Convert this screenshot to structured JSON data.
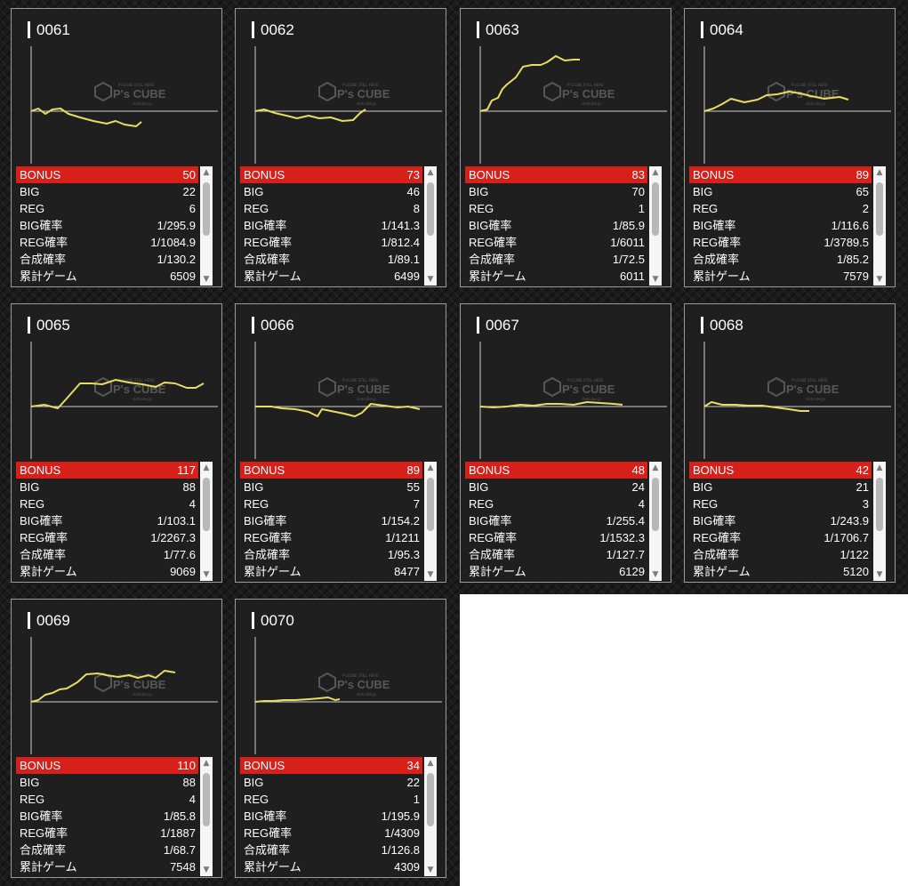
{
  "labels": {
    "bonus": "BONUS",
    "big": "BIG",
    "reg": "REG",
    "big_rate": "BIG確率",
    "reg_rate": "REG確率",
    "total_rate": "合成確率",
    "games": "累計ゲーム"
  },
  "watermark": {
    "brand": "P's CUBE",
    "top_text": "P'sCUBE STILL HERE",
    "sub_text": "slotcube.jp"
  },
  "colors": {
    "line": "#e9dc63",
    "bonus_bar": "#d8201b",
    "card_bg": "#1f1f1f",
    "card_border": "#9a9a9a"
  },
  "machines": [
    {
      "id": "0061",
      "bonus": "50",
      "big": "22",
      "reg": "6",
      "big_rate": "1/295.9",
      "reg_rate": "1/1084.9",
      "total_rate": "1/130.2",
      "games": "6509",
      "trend": [
        [
          0,
          0
        ],
        [
          8,
          -3
        ],
        [
          16,
          3
        ],
        [
          24,
          -2
        ],
        [
          33,
          -3
        ],
        [
          42,
          3
        ],
        [
          55,
          7
        ],
        [
          70,
          11
        ],
        [
          85,
          14
        ],
        [
          95,
          11
        ],
        [
          105,
          15
        ],
        [
          118,
          17
        ],
        [
          124,
          12
        ]
      ]
    },
    {
      "id": "0062",
      "bonus": "73",
      "big": "46",
      "reg": "8",
      "big_rate": "1/141.3",
      "reg_rate": "1/812.4",
      "total_rate": "1/89.1",
      "games": "6499",
      "trend": [
        [
          0,
          0
        ],
        [
          10,
          -2
        ],
        [
          22,
          2
        ],
        [
          35,
          5
        ],
        [
          47,
          8
        ],
        [
          60,
          5
        ],
        [
          72,
          8
        ],
        [
          85,
          7
        ],
        [
          98,
          11
        ],
        [
          110,
          10
        ],
        [
          118,
          2
        ],
        [
          124,
          -2
        ]
      ]
    },
    {
      "id": "0063",
      "bonus": "83",
      "big": "70",
      "reg": "1",
      "big_rate": "1/85.9",
      "reg_rate": "1/6011",
      "total_rate": "1/72.5",
      "games": "6011",
      "trend": [
        [
          0,
          0
        ],
        [
          8,
          -2
        ],
        [
          13,
          -12
        ],
        [
          20,
          -15
        ],
        [
          25,
          -25
        ],
        [
          30,
          -30
        ],
        [
          40,
          -38
        ],
        [
          48,
          -50
        ],
        [
          58,
          -52
        ],
        [
          68,
          -52
        ],
        [
          75,
          -55
        ],
        [
          85,
          -62
        ],
        [
          95,
          -57
        ],
        [
          105,
          -58
        ],
        [
          112,
          -58
        ]
      ]
    },
    {
      "id": "0064",
      "bonus": "89",
      "big": "65",
      "reg": "2",
      "big_rate": "1/116.6",
      "reg_rate": "1/3789.5",
      "total_rate": "1/85.2",
      "games": "7579",
      "trend": [
        [
          0,
          0
        ],
        [
          10,
          -3
        ],
        [
          20,
          -8
        ],
        [
          30,
          -14
        ],
        [
          45,
          -10
        ],
        [
          60,
          -13
        ],
        [
          70,
          -18
        ],
        [
          82,
          -19
        ],
        [
          95,
          -22
        ],
        [
          108,
          -20
        ],
        [
          120,
          -17
        ],
        [
          135,
          -14
        ],
        [
          152,
          -16
        ],
        [
          162,
          -13
        ]
      ]
    },
    {
      "id": "0065",
      "bonus": "117",
      "big": "88",
      "reg": "4",
      "big_rate": "1/103.1",
      "reg_rate": "1/2267.3",
      "total_rate": "1/77.6",
      "games": "9069",
      "trend": [
        [
          0,
          0
        ],
        [
          15,
          -2
        ],
        [
          30,
          2
        ],
        [
          40,
          -9
        ],
        [
          55,
          -26
        ],
        [
          68,
          -26
        ],
        [
          80,
          -25
        ],
        [
          95,
          -30
        ],
        [
          110,
          -27
        ],
        [
          125,
          -25
        ],
        [
          140,
          -22
        ],
        [
          150,
          -27
        ],
        [
          162,
          -26
        ],
        [
          175,
          -21
        ],
        [
          185,
          -21
        ],
        [
          194,
          -26
        ]
      ]
    },
    {
      "id": "0066",
      "bonus": "89",
      "big": "55",
      "reg": "7",
      "big_rate": "1/154.2",
      "reg_rate": "1/1211",
      "total_rate": "1/95.3",
      "games": "8477",
      "trend": [
        [
          0,
          0
        ],
        [
          18,
          0
        ],
        [
          30,
          2
        ],
        [
          45,
          3
        ],
        [
          60,
          6
        ],
        [
          70,
          11
        ],
        [
          75,
          3
        ],
        [
          90,
          6
        ],
        [
          100,
          8
        ],
        [
          112,
          11
        ],
        [
          120,
          7
        ],
        [
          130,
          -3
        ],
        [
          145,
          -1
        ],
        [
          160,
          1
        ],
        [
          172,
          0
        ],
        [
          185,
          3
        ]
      ]
    },
    {
      "id": "0067",
      "bonus": "48",
      "big": "24",
      "reg": "4",
      "big_rate": "1/255.4",
      "reg_rate": "1/1532.3",
      "total_rate": "1/127.7",
      "games": "6129",
      "trend": [
        [
          0,
          0
        ],
        [
          15,
          1
        ],
        [
          30,
          0
        ],
        [
          45,
          -2
        ],
        [
          60,
          -1
        ],
        [
          75,
          -3
        ],
        [
          90,
          -3
        ],
        [
          105,
          -2
        ],
        [
          120,
          -5
        ],
        [
          135,
          -4
        ],
        [
          150,
          -3
        ],
        [
          160,
          -2
        ]
      ]
    },
    {
      "id": "0068",
      "bonus": "42",
      "big": "21",
      "reg": "3",
      "big_rate": "1/243.9",
      "reg_rate": "1/1706.7",
      "total_rate": "1/122",
      "games": "5120",
      "trend": [
        [
          0,
          0
        ],
        [
          8,
          -5
        ],
        [
          20,
          -2
        ],
        [
          35,
          -2
        ],
        [
          50,
          -1
        ],
        [
          65,
          -1
        ],
        [
          80,
          1
        ],
        [
          95,
          3
        ],
        [
          108,
          5
        ],
        [
          118,
          5
        ]
      ]
    },
    {
      "id": "0069",
      "bonus": "110",
      "big": "88",
      "reg": "4",
      "big_rate": "1/85.8",
      "reg_rate": "1/1887",
      "total_rate": "1/68.7",
      "games": "7548",
      "trend": [
        [
          0,
          0
        ],
        [
          8,
          -2
        ],
        [
          16,
          -8
        ],
        [
          24,
          -10
        ],
        [
          32,
          -14
        ],
        [
          40,
          -15
        ],
        [
          52,
          -22
        ],
        [
          62,
          -31
        ],
        [
          75,
          -32
        ],
        [
          85,
          -30
        ],
        [
          98,
          -28
        ],
        [
          110,
          -30
        ],
        [
          120,
          -27
        ],
        [
          132,
          -30
        ],
        [
          140,
          -27
        ],
        [
          150,
          -35
        ],
        [
          162,
          -33
        ]
      ]
    },
    {
      "id": "0070",
      "bonus": "34",
      "big": "22",
      "reg": "1",
      "big_rate": "1/195.9",
      "reg_rate": "1/4309",
      "total_rate": "1/126.8",
      "games": "4309",
      "trend": [
        [
          0,
          0
        ],
        [
          10,
          -1
        ],
        [
          20,
          -1
        ],
        [
          32,
          -2
        ],
        [
          45,
          -2
        ],
        [
          60,
          -3
        ],
        [
          72,
          -4
        ],
        [
          82,
          -5
        ],
        [
          90,
          -2
        ],
        [
          95,
          -3
        ]
      ]
    }
  ]
}
